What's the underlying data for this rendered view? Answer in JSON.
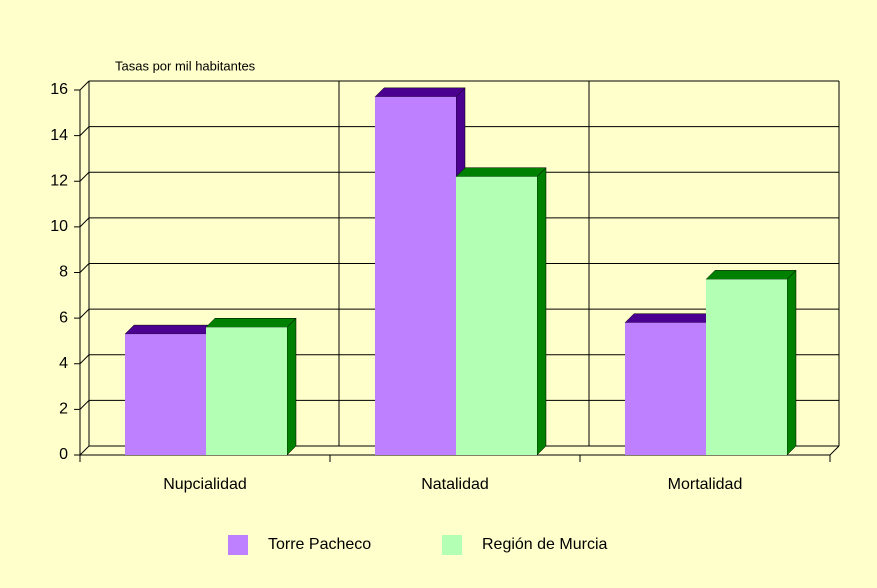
{
  "chart_data": {
    "type": "bar3d",
    "y_axis_label": "Tasas por mil habitantes",
    "categories": [
      "Nupcialidad",
      "Natalidad",
      "Mortalidad"
    ],
    "series": [
      {
        "name": "Torre Pacheco",
        "color": "#bf80ff",
        "values": [
          5.3,
          15.7,
          5.8
        ]
      },
      {
        "name": "Región de Murcia",
        "color": "#b3ffb3",
        "values": [
          5.6,
          12.2,
          7.7
        ]
      }
    ],
    "ylim": [
      0,
      16
    ],
    "yticks": [
      0,
      2,
      4,
      6,
      8,
      10,
      12,
      14,
      16
    ],
    "grid": true,
    "legend": "bottom"
  }
}
